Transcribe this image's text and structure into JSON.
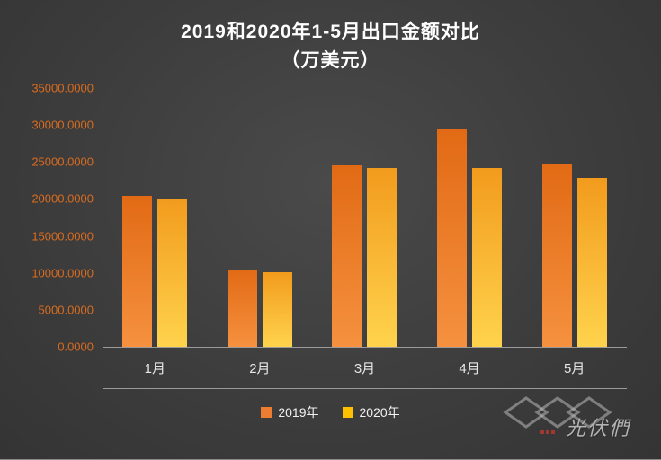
{
  "page": {
    "title_line1": "2019和2020年1-5月出口金额对比",
    "title_line2": "（万美元）"
  },
  "watermark": {
    "text": "光伏們"
  },
  "colors": {
    "background": "#3d3d3d",
    "axis_label": "#d96c1f",
    "category_label": "#e7e6e6",
    "axis_line": "#9a9a9a",
    "title_text": "#ffffff"
  },
  "chart_data": {
    "type": "bar",
    "title": "2019和2020年1-5月出口金额对比（万美元）",
    "xlabel": "",
    "ylabel": "",
    "categories": [
      "1月",
      "2月",
      "3月",
      "4月",
      "5月"
    ],
    "series": [
      {
        "name": "2019年",
        "values": [
          20400,
          10400,
          24500,
          29400,
          24800
        ],
        "color_top": "#e26a15",
        "color_bottom": "#f5913f",
        "legend_color": "#ed7d31"
      },
      {
        "name": "2020年",
        "values": [
          20000,
          10100,
          24200,
          24200,
          22800
        ],
        "color_top": "#f29b1d",
        "color_bottom": "#ffd34d",
        "legend_color": "#ffc000"
      }
    ],
    "ylim": [
      0,
      35000
    ],
    "yticks": [
      {
        "value": 0,
        "label": "0.0000"
      },
      {
        "value": 5000,
        "label": "5000.0000"
      },
      {
        "value": 10000,
        "label": "10000.0000"
      },
      {
        "value": 15000,
        "label": "15000.0000"
      },
      {
        "value": 20000,
        "label": "20000.0000"
      },
      {
        "value": 25000,
        "label": "25000.0000"
      },
      {
        "value": 30000,
        "label": "30000.0000"
      },
      {
        "value": 35000,
        "label": "35000.0000"
      }
    ],
    "grid": false,
    "legend_position": "bottom"
  }
}
